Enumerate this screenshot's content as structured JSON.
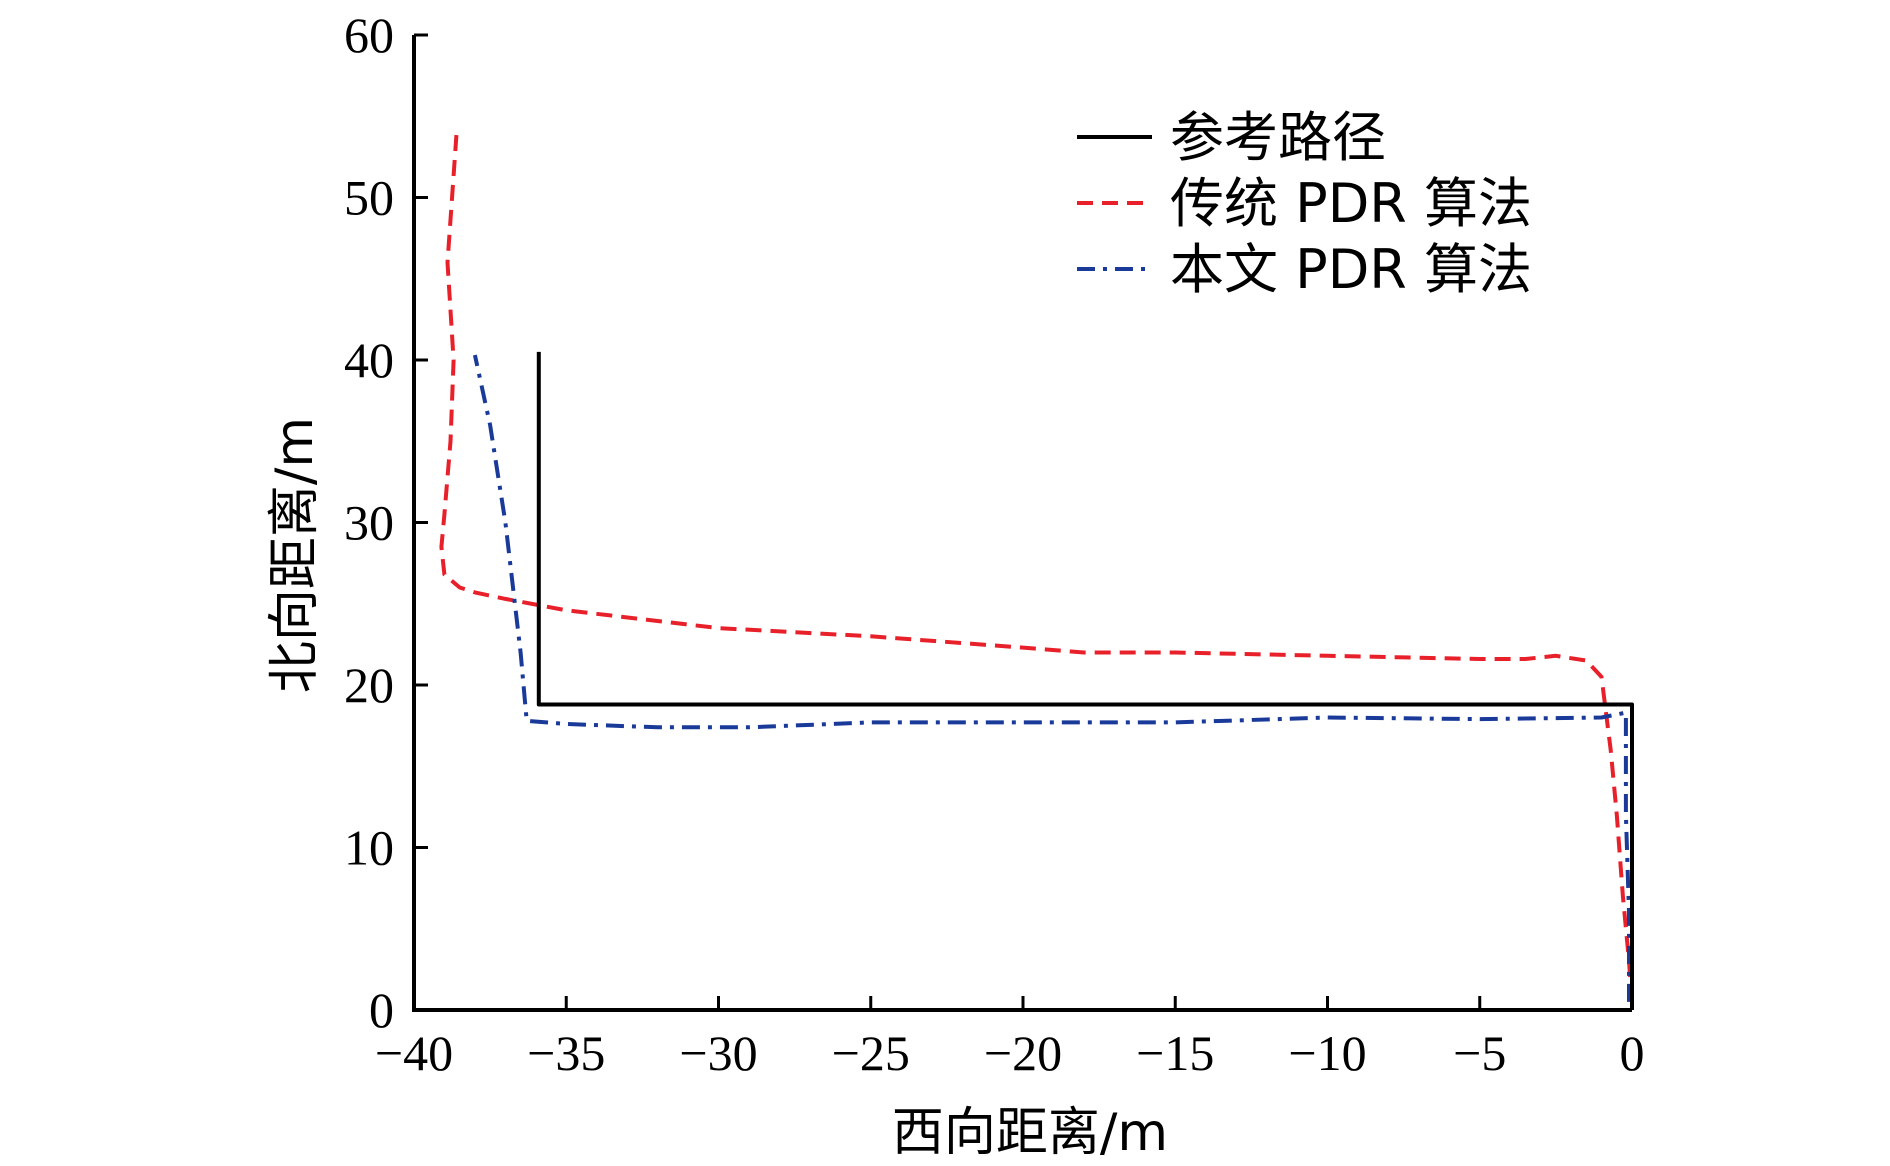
{
  "chart_data": {
    "type": "line",
    "xlabel": "西向距离/m",
    "ylabel": "北向距离/m",
    "xlim": [
      -40,
      0
    ],
    "ylim": [
      0,
      60
    ],
    "xticks": [
      -40,
      -35,
      -30,
      -25,
      -20,
      -15,
      -10,
      -5,
      0
    ],
    "yticks": [
      0,
      10,
      20,
      30,
      40,
      50,
      60
    ],
    "xtick_labels": [
      "−40",
      "−35",
      "−30",
      "−25",
      "−20",
      "−15",
      "−10",
      "−5",
      "0"
    ],
    "ytick_labels": [
      "0",
      "10",
      "20",
      "30",
      "40",
      "50",
      "60"
    ],
    "grid": false,
    "legend_position": "top-right",
    "series": [
      {
        "name": "参考路径",
        "color": "#000000",
        "style": "solid",
        "x": [
          0,
          0,
          -35.9,
          -35.9
        ],
        "y": [
          0,
          18.8,
          18.8,
          40.5
        ]
      },
      {
        "name": "传统 PDR 算法",
        "color": "#e8202a",
        "style": "dashed",
        "x": [
          0.0,
          -0.1,
          -0.3,
          -0.5,
          -0.7,
          -1.0,
          -1.5,
          -2.5,
          -3.5,
          -5,
          -10,
          -15,
          -18,
          -20,
          -25,
          -30,
          -35,
          -37,
          -38,
          -38.5,
          -39.0,
          -39.1,
          -39.0,
          -38.8,
          -38.7,
          -38.9,
          -38.6
        ],
        "y": [
          0.5,
          3.0,
          7.0,
          12.0,
          16.0,
          20.5,
          21.5,
          21.8,
          21.6,
          21.6,
          21.8,
          22.0,
          22.0,
          22.3,
          23.0,
          23.5,
          24.6,
          25.3,
          25.7,
          26.0,
          26.8,
          28.5,
          30.5,
          35.0,
          40.0,
          46.0,
          54.0
        ]
      },
      {
        "name": "本文 PDR 算法",
        "color": "#1a3a9a",
        "style": "dashdot",
        "x": [
          -0.1,
          -0.1,
          -0.2,
          -0.2,
          -1.0,
          -5,
          -10,
          -15,
          -20,
          -25,
          -29,
          -32,
          -35,
          -36.3,
          -36.5,
          -37.0,
          -37.5,
          -38.0
        ],
        "y": [
          0.5,
          6.0,
          12.0,
          18.3,
          18.0,
          17.9,
          18.0,
          17.7,
          17.7,
          17.7,
          17.4,
          17.4,
          17.6,
          17.8,
          22.0,
          30.0,
          36.0,
          40.3
        ]
      }
    ]
  }
}
